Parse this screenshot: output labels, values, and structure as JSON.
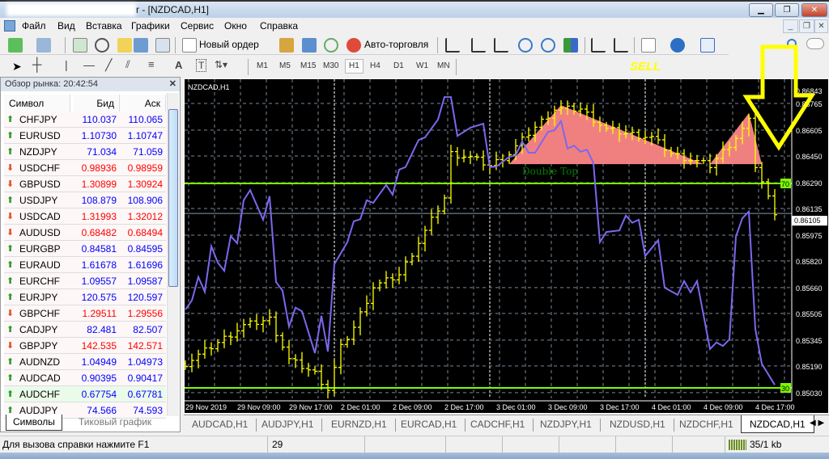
{
  "window": {
    "title": "r - [NZDCAD,H1]",
    "controls": [
      "minimize",
      "restore",
      "close"
    ]
  },
  "menu": [
    "Файл",
    "Вид",
    "Вставка",
    "Графики",
    "Сервис",
    "Окно",
    "Справка"
  ],
  "toolbar1": {
    "new_order": "Новый ордер",
    "auto_trading": "Авто-торговля"
  },
  "toolbar2": {
    "timeframes": [
      "M1",
      "M5",
      "M15",
      "M30",
      "H1",
      "H4",
      "D1",
      "W1",
      "MN"
    ],
    "active": "H1"
  },
  "annotation_sell": "SELL",
  "market_watch": {
    "title": "Обзор рынка: 20:42:54",
    "columns": [
      "Символ",
      "Бид",
      "Аск"
    ],
    "rows": [
      {
        "symbol": "CHFJPY",
        "bid": "110.037",
        "ask": "110.065",
        "dir": "up"
      },
      {
        "symbol": "EURUSD",
        "bid": "1.10730",
        "ask": "1.10747",
        "dir": "up"
      },
      {
        "symbol": "NZDJPY",
        "bid": "71.034",
        "ask": "71.059",
        "dir": "up"
      },
      {
        "symbol": "USDCHF",
        "bid": "0.98936",
        "ask": "0.98959",
        "dir": "down"
      },
      {
        "symbol": "GBPUSD",
        "bid": "1.30899",
        "ask": "1.30924",
        "dir": "down"
      },
      {
        "symbol": "USDJPY",
        "bid": "108.879",
        "ask": "108.906",
        "dir": "up"
      },
      {
        "symbol": "USDCAD",
        "bid": "1.31993",
        "ask": "1.32012",
        "dir": "down"
      },
      {
        "symbol": "AUDUSD",
        "bid": "0.68482",
        "ask": "0.68494",
        "dir": "down"
      },
      {
        "symbol": "EURGBP",
        "bid": "0.84581",
        "ask": "0.84595",
        "dir": "up"
      },
      {
        "symbol": "EURAUD",
        "bid": "1.61678",
        "ask": "1.61696",
        "dir": "up"
      },
      {
        "symbol": "EURCHF",
        "bid": "1.09557",
        "ask": "1.09587",
        "dir": "up"
      },
      {
        "symbol": "EURJPY",
        "bid": "120.575",
        "ask": "120.597",
        "dir": "up"
      },
      {
        "symbol": "GBPCHF",
        "bid": "1.29511",
        "ask": "1.29556",
        "dir": "down"
      },
      {
        "symbol": "CADJPY",
        "bid": "82.481",
        "ask": "82.507",
        "dir": "up"
      },
      {
        "symbol": "GBPJPY",
        "bid": "142.535",
        "ask": "142.571",
        "dir": "down"
      },
      {
        "symbol": "AUDNZD",
        "bid": "1.04949",
        "ask": "1.04973",
        "dir": "up"
      },
      {
        "symbol": "AUDCAD",
        "bid": "0.90395",
        "ask": "0.90417",
        "dir": "up"
      },
      {
        "symbol": "AUDCHF",
        "bid": "0.67754",
        "ask": "0.67781",
        "dir": "up",
        "selected": true
      },
      {
        "symbol": "AUDJPY",
        "bid": "74.566",
        "ask": "74.593",
        "dir": "up"
      }
    ],
    "tabs": [
      "Символы",
      "Тиковый график"
    ],
    "colors": {
      "up": "#0000ff",
      "down": "#ff0000"
    }
  },
  "chart_tabs": [
    "AUDCAD,H1",
    "AUDJPY,H1",
    "EURNZD,H1",
    "EURCAD,H1",
    "CADCHF,H1",
    "NZDJPY,H1",
    "NZDUSD,H1",
    "NZDCHF,H1",
    "NZDCAD,H1"
  ],
  "active_chart_tab": "NZDCAD,H1",
  "status": {
    "help": "Для вызова справки нажмите F1",
    "field": "29",
    "traffic": "35/1 kb"
  },
  "chart_data": {
    "type": "line",
    "symbol_label": "NZDCAD,H1",
    "price_axis": [
      "0.86843",
      "0.86765",
      "0.86605",
      "0.86450",
      "0.86290",
      "0.86135",
      "0.85975",
      "0.85820",
      "0.85660",
      "0.85505",
      "0.85345",
      "0.85190",
      "0.85030"
    ],
    "current_price": "0.86105",
    "time_axis": [
      "29 Nov 2019",
      "29 Nov 09:00",
      "29 Nov 17:00",
      "2 Dec 01:00",
      "2 Dec 09:00",
      "2 Dec 17:00",
      "3 Dec 01:00",
      "3 Dec 09:00",
      "3 Dec 17:00",
      "4 Dec 01:00",
      "4 Dec 09:00",
      "4 Dec 17:00"
    ],
    "rsi_levels": [
      "70",
      "30"
    ],
    "colors": {
      "bars": "#ffff00",
      "rsi": "#7b68ee",
      "levels": "#7cfc00",
      "pattern": "#f08080",
      "arrow": "#ffff00",
      "pattern_label": "#008000"
    },
    "price_close": [
      [
        "29 Nov 01:00",
        0.85204
      ],
      [
        "29 Nov 10:00",
        0.85432
      ],
      [
        "29 Nov 14:00",
        0.85471
      ],
      [
        "29 Nov 17:00",
        0.85228
      ],
      [
        "29 Nov 21:00",
        0.85146
      ],
      [
        "29 Nov 23:00",
        0.85049
      ],
      [
        "2 Dec 01:00",
        0.85301
      ],
      [
        "2 Dec 03:00",
        0.85422
      ],
      [
        "2 Dec 06:00",
        0.85664
      ],
      [
        "2 Dec 10:00",
        0.85737
      ],
      [
        "2 Dec 13:00",
        0.85931
      ],
      [
        "2 Dec 17:00",
        0.86198
      ],
      [
        "2 Dec 18:00",
        0.86464
      ],
      [
        "2 Dec 21:00",
        0.8644
      ],
      [
        "3 Dec 00:00",
        0.86392
      ],
      [
        "3 Dec 03:00",
        0.86464
      ],
      [
        "3 Dec 06:00",
        0.86586
      ],
      [
        "3 Dec 10:00",
        0.86731
      ],
      [
        "3 Dec 14:00",
        0.86731
      ],
      [
        "3 Dec 18:00",
        0.8661
      ],
      [
        "3 Dec 21:00",
        0.86586
      ],
      [
        "4 Dec 01:00",
        0.86561
      ],
      [
        "4 Dec 04:00",
        0.86464
      ],
      [
        "4 Dec 10:00",
        0.86392
      ],
      [
        "4 Dec 14:00",
        0.86561
      ],
      [
        "4 Dec 16:00",
        0.86658
      ],
      [
        "4 Dec 17:00",
        0.86392
      ],
      [
        "4 Dec 19:00",
        0.86198
      ],
      [
        "4 Dec 20:00",
        0.86115
      ]
    ],
    "rsi": [
      [
        "29 Nov 01:00",
        45.3
      ],
      [
        "29 Nov 02:00",
        47.1
      ],
      [
        "29 Nov 03:00",
        51.7
      ],
      [
        "29 Nov 04:00",
        48.8
      ],
      [
        "29 Nov 05:00",
        57.7
      ],
      [
        "29 Nov 06:00",
        54.5
      ],
      [
        "29 Nov 07:00",
        52.9
      ],
      [
        "29 Nov 08:00",
        59.7
      ],
      [
        "29 Nov 09:00",
        58.3
      ],
      [
        "29 Nov 10:00",
        66.7
      ],
      [
        "29 Nov 11:00",
        68.7
      ],
      [
        "29 Nov 13:00",
        62.9
      ],
      [
        "29 Nov 14:00",
        67.5
      ],
      [
        "29 Nov 15:00",
        50.7
      ],
      [
        "29 Nov 16:00",
        49.0
      ],
      [
        "29 Nov 17:00",
        42.0
      ],
      [
        "29 Nov 18:00",
        45.7
      ],
      [
        "29 Nov 19:00",
        45.0
      ],
      [
        "29 Nov 21:00",
        36.8
      ],
      [
        "29 Nov 22:00",
        44.1
      ],
      [
        "29 Nov 23:00",
        37.1
      ],
      [
        "2 Dec 00:00",
        54.2
      ],
      [
        "2 Dec 02:00",
        58.5
      ],
      [
        "2 Dec 03:00",
        62.6
      ],
      [
        "2 Dec 04:00",
        63.0
      ],
      [
        "2 Dec 05:00",
        66.7
      ],
      [
        "2 Dec 06:00",
        66.2
      ],
      [
        "2 Dec 08:00",
        69.7
      ],
      [
        "2 Dec 09:00",
        67.8
      ],
      [
        "2 Dec 10:00",
        72.7
      ],
      [
        "2 Dec 11:00",
        73.2
      ],
      [
        "2 Dec 13:00",
        78.5
      ],
      [
        "2 Dec 14:00",
        79.0
      ],
      [
        "2 Dec 16:00",
        82.5
      ],
      [
        "2 Dec 17:00",
        86.9
      ],
      [
        "2 Dec 18:00",
        86.9
      ],
      [
        "2 Dec 19:00",
        79.3
      ],
      [
        "2 Dec 21:00",
        80.9
      ],
      [
        "2 Dec 23:00",
        81.7
      ],
      [
        "3 Dec 00:00",
        73.2
      ],
      [
        "3 Dec 01:00",
        73.3
      ],
      [
        "3 Dec 03:00",
        75.2
      ],
      [
        "3 Dec 04:00",
        75.5
      ],
      [
        "3 Dec 05:00",
        78.2
      ],
      [
        "3 Dec 06:00",
        76.0
      ],
      [
        "3 Dec 07:00",
        76.0
      ],
      [
        "3 Dec 09:00",
        80.1
      ],
      [
        "3 Dec 10:00",
        80.4
      ],
      [
        "3 Dec 11:00",
        82.2
      ],
      [
        "3 Dec 12:00",
        76.8
      ],
      [
        "3 Dec 13:00",
        77.4
      ],
      [
        "3 Dec 14:00",
        76.2
      ],
      [
        "3 Dec 15:00",
        76.6
      ],
      [
        "3 Dec 16:00",
        74.0
      ],
      [
        "3 Dec 17:00",
        58.5
      ],
      [
        "3 Dec 18:00",
        60.5
      ],
      [
        "3 Dec 20:00",
        60.8
      ],
      [
        "3 Dec 21:00",
        63.7
      ],
      [
        "3 Dec 22:00",
        62.3
      ],
      [
        "3 Dec 23:00",
        62.9
      ],
      [
        "4 Dec 00:00",
        55.8
      ],
      [
        "4 Dec 02:00",
        58.9
      ],
      [
        "4 Dec 03:00",
        49.6
      ],
      [
        "4 Dec 05:00",
        48.2
      ],
      [
        "4 Dec 06:00",
        50.9
      ],
      [
        "4 Dec 07:00",
        48.7
      ],
      [
        "4 Dec 08:00",
        50.9
      ],
      [
        "4 Dec 10:00",
        37.6
      ],
      [
        "4 Dec 11:00",
        38.9
      ],
      [
        "4 Dec 12:00",
        38.2
      ],
      [
        "4 Dec 13:00",
        39.5
      ],
      [
        "4 Dec 14:00",
        59.6
      ],
      [
        "4 Dec 15:00",
        63.2
      ],
      [
        "4 Dec 16:00",
        64.5
      ],
      [
        "4 Dec 17:00",
        41.5
      ],
      [
        "4 Dec 18:00",
        34.7
      ],
      [
        "4 Dec 20:00",
        30.6
      ]
    ],
    "pattern": {
      "label": "Double Top",
      "triangles": [
        [
          [
            "3 Dec 03:00",
            0.86401
          ],
          [
            "3 Dec 11:00",
            0.86755
          ],
          [
            "4 Dec 09:00",
            0.86401
          ]
        ],
        [
          [
            "4 Dec 10:00",
            0.86401
          ],
          [
            "4 Dec 16:00",
            0.86707
          ],
          [
            "4 Dec 18:00",
            0.86401
          ]
        ]
      ]
    }
  }
}
